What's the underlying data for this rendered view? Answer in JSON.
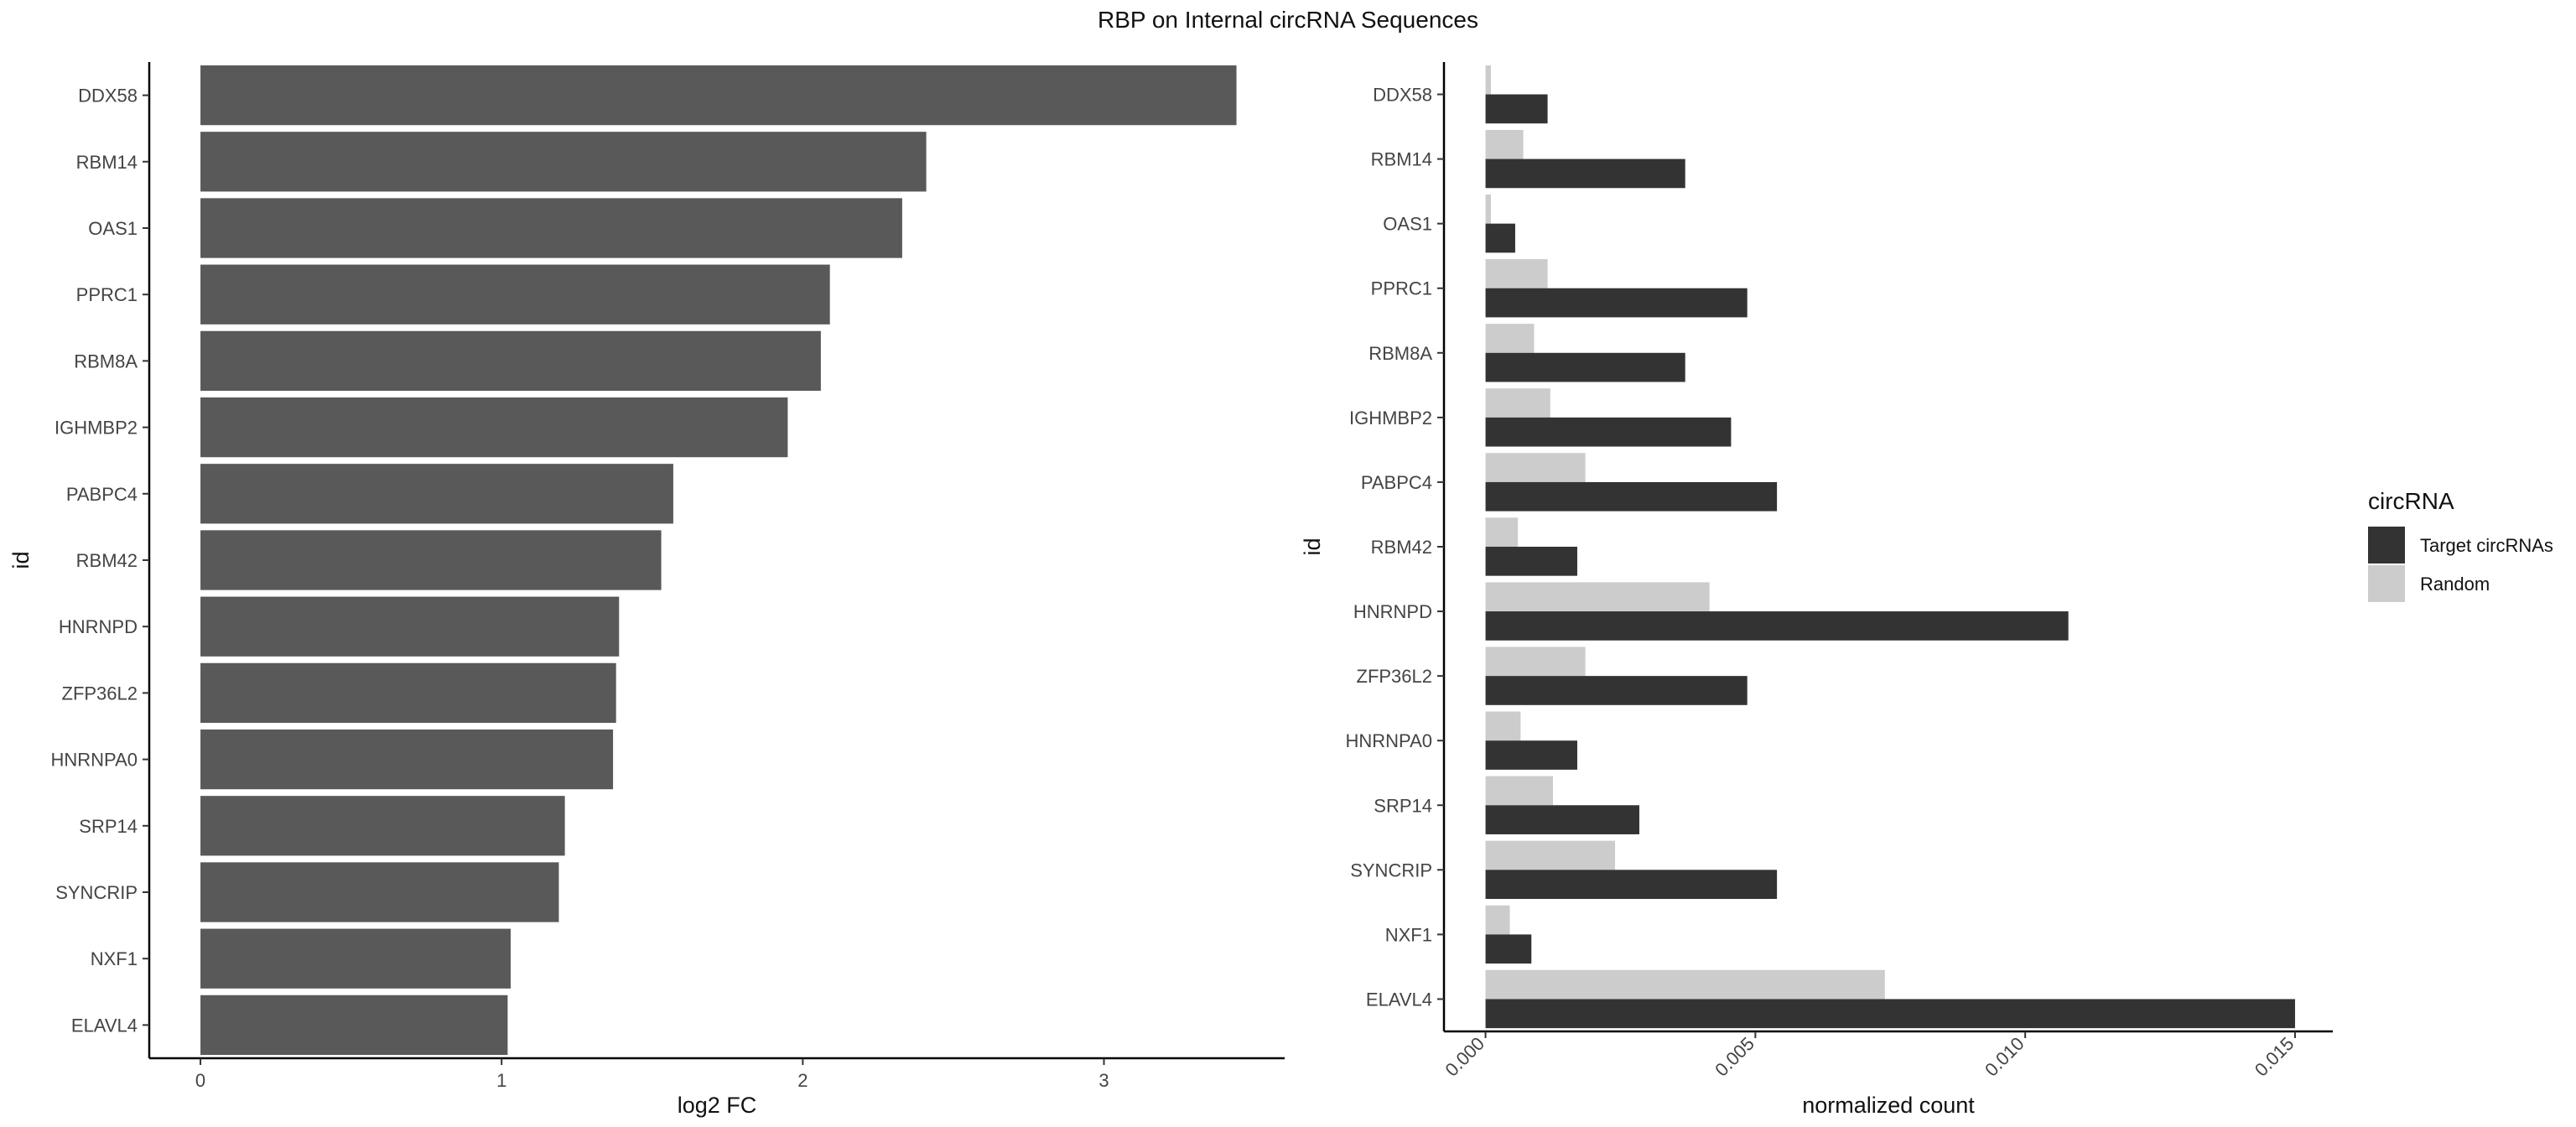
{
  "title": "RBP on Internal circRNA Sequences",
  "chart_data": [
    {
      "type": "bar",
      "orientation": "horizontal",
      "categories": [
        "DDX58",
        "RBM14",
        "OAS1",
        "PPRC1",
        "RBM8A",
        "IGHMBP2",
        "PABPC4",
        "RBM42",
        "HNRNPD",
        "ZFP36L2",
        "HNRNPA0",
        "SRP14",
        "SYNCRIP",
        "NXF1",
        "ELAVL4"
      ],
      "values": [
        3.44,
        2.41,
        2.33,
        2.09,
        2.06,
        1.95,
        1.57,
        1.53,
        1.39,
        1.38,
        1.37,
        1.21,
        1.19,
        1.03,
        1.02
      ],
      "xlabel": "log2 FC",
      "ylabel": "id",
      "xlim": [
        -0.17,
        3.6
      ],
      "xticks": [
        0,
        1,
        2,
        3
      ],
      "xtick_labels": [
        "0",
        "1",
        "2",
        "3"
      ],
      "color": "#595959",
      "grid": false
    },
    {
      "type": "bar",
      "orientation": "horizontal",
      "grouped": true,
      "categories": [
        "DDX58",
        "RBM14",
        "OAS1",
        "PPRC1",
        "RBM8A",
        "IGHMBP2",
        "PABPC4",
        "RBM42",
        "HNRNPD",
        "ZFP36L2",
        "HNRNPA0",
        "SRP14",
        "SYNCRIP",
        "NXF1",
        "ELAVL4"
      ],
      "series": [
        {
          "name": "Target circRNAs",
          "color": "#333333",
          "values": [
            0.00115,
            0.0037,
            0.00055,
            0.00485,
            0.0037,
            0.00455,
            0.0054,
            0.0017,
            0.0108,
            0.00485,
            0.0017,
            0.00285,
            0.0054,
            0.00085,
            0.015
          ]
        },
        {
          "name": "Random",
          "color": "#cccccc",
          "values": [
            0.0001,
            0.0007,
            0.0001,
            0.00115,
            0.0009,
            0.0012,
            0.00185,
            0.0006,
            0.00415,
            0.00185,
            0.00065,
            0.00125,
            0.0024,
            0.00045,
            0.0074
          ]
        }
      ],
      "xlabel": "normalized count",
      "ylabel": "id",
      "xlim": [
        -0.00077,
        0.0157
      ],
      "xticks": [
        0,
        0.005,
        0.01,
        0.015
      ],
      "xtick_labels": [
        "0.000",
        "0.005",
        "0.010",
        "0.015"
      ],
      "legend": {
        "title": "circRNA",
        "position": "right"
      },
      "grid": false
    }
  ]
}
